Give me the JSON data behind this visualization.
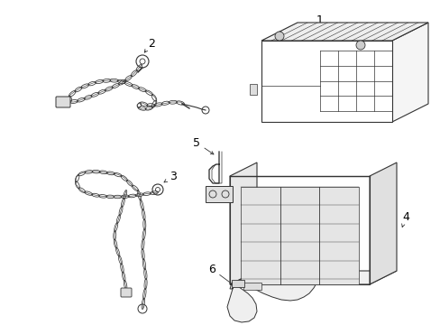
{
  "background_color": "#ffffff",
  "line_color": "#333333",
  "label_color": "#000000",
  "figsize": [
    4.89,
    3.6
  ],
  "dpi": 100,
  "label_fontsize": 9,
  "arrow_lw": 0.6,
  "part_lw": 0.8
}
